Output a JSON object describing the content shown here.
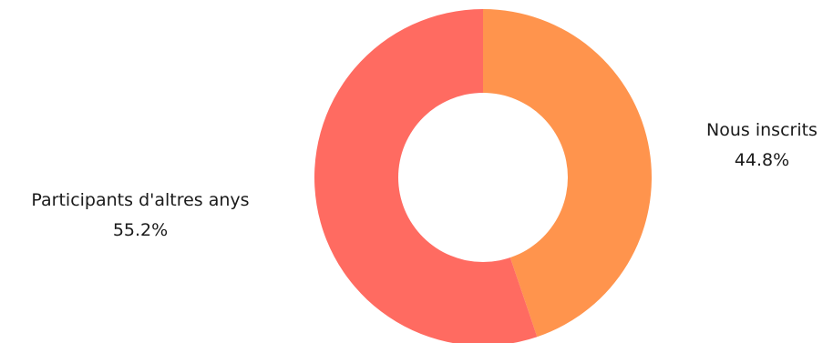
{
  "chart_data": {
    "type": "pie",
    "donut": true,
    "start_angle_deg": 0,
    "direction": "clockwise",
    "slices": [
      {
        "label": "Nous inscrits",
        "value": 44.8,
        "value_label": "44.8%",
        "color": "#ff944d",
        "label_side": "right"
      },
      {
        "label": "Participants d'altres anys",
        "value": 55.2,
        "value_label": "55.2%",
        "color": "#ff6b61",
        "label_side": "left"
      }
    ],
    "background": "#ffffff",
    "hole_color": "#ffffff"
  }
}
